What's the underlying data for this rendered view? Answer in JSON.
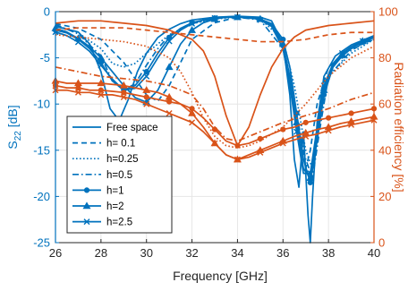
{
  "chart_data": {
    "type": "line",
    "xlabel": "Frequency [GHz]",
    "ylabel_left": "S",
    "ylabel_left_sub": "22",
    "ylabel_left_unit": " [dB]",
    "ylabel_right": "Radiation efficiency [%]",
    "xlim": [
      26,
      40
    ],
    "ylim_left": [
      -25,
      0
    ],
    "ylim_right": [
      0,
      100
    ],
    "xticks": [
      26,
      28,
      30,
      32,
      34,
      36,
      38,
      40
    ],
    "yticks_left": [
      0,
      -5,
      -10,
      -15,
      -20,
      -25
    ],
    "yticks_right": [
      100,
      80,
      60,
      40,
      20,
      0
    ],
    "grid": true,
    "legend_position": "bottom-left",
    "colors": {
      "left_axis": "#0072BD",
      "right_axis": "#D95319",
      "s22": "#0072BD",
      "efficiency": "#D95319"
    },
    "legend": [
      {
        "label": "Free space",
        "style": "solid",
        "marker": "none"
      },
      {
        "label": "h= 0.1",
        "style": "dashed",
        "marker": "none"
      },
      {
        "label": "h=0.25",
        "style": "dotted",
        "marker": "none"
      },
      {
        "label": "h=0.5",
        "style": "dashdot",
        "marker": "none"
      },
      {
        "label": "h=1",
        "style": "solid",
        "marker": "circle"
      },
      {
        "label": "h=2",
        "style": "solid",
        "marker": "triangle"
      },
      {
        "label": "h=2.5",
        "style": "solid",
        "marker": "x"
      }
    ],
    "s22_series": [
      {
        "style": "solid",
        "marker": "none",
        "x": [
          26,
          27,
          27.5,
          28,
          28.4,
          28.8,
          29.2,
          29.6,
          30,
          30.5,
          31,
          31.5,
          32,
          33,
          34,
          35,
          35.5,
          36,
          36.3,
          36.5,
          36.7,
          36.9,
          37.1,
          37.2,
          37.3,
          37.5,
          37.8,
          38.3,
          39,
          40
        ],
        "y": [
          -1.6,
          -2.2,
          -3.5,
          -6.5,
          -10.5,
          -11.8,
          -9.5,
          -6.5,
          -4.5,
          -2.8,
          -1.9,
          -1.3,
          -0.9,
          -0.6,
          -0.5,
          -0.6,
          -1.0,
          -3.5,
          -9,
          -16,
          -19,
          -13,
          -22,
          -25,
          -20,
          -12,
          -7,
          -4.8,
          -3.6,
          -2.6
        ]
      },
      {
        "style": "dashed",
        "marker": "none",
        "x": [
          26,
          27,
          28,
          29,
          30,
          30.5,
          31,
          31.5,
          32,
          33,
          34,
          35,
          35.5,
          36,
          36.4,
          36.8,
          37,
          37.2,
          37.5,
          38,
          39,
          40
        ],
        "y": [
          -1.3,
          -1.8,
          -3,
          -5.5,
          -9,
          -9.7,
          -8,
          -5.5,
          -3,
          -1.2,
          -0.6,
          -0.8,
          -1.5,
          -4,
          -9,
          -14,
          -17,
          -15,
          -10,
          -6,
          -4,
          -3
        ]
      },
      {
        "style": "dotted",
        "marker": "none",
        "x": [
          26,
          27,
          28,
          28.5,
          29,
          29.5,
          30,
          31,
          32,
          33,
          34,
          35,
          36,
          36.5,
          37,
          37.3,
          37.6,
          38,
          39,
          40
        ],
        "y": [
          -1.5,
          -2.3,
          -4,
          -5.6,
          -6.0,
          -5.6,
          -4.5,
          -2.5,
          -1.3,
          -0.8,
          -0.6,
          -0.8,
          -3,
          -8,
          -15,
          -17,
          -12,
          -7,
          -4.5,
          -3
        ]
      },
      {
        "style": "dashdot",
        "marker": "none",
        "x": [
          26,
          27,
          28,
          28.5,
          29,
          29.5,
          30,
          30.5,
          31,
          32,
          33,
          34,
          35,
          36,
          36.5,
          37,
          37.3,
          37.6,
          38,
          39,
          40
        ],
        "y": [
          -1.4,
          -2.4,
          -4.8,
          -7.5,
          -8.5,
          -7.8,
          -5.8,
          -4,
          -2.6,
          -1.3,
          -0.7,
          -0.6,
          -0.9,
          -4,
          -10,
          -16,
          -18,
          -13,
          -7,
          -4.2,
          -2.8
        ]
      },
      {
        "style": "solid",
        "marker": "circle",
        "x": [
          26,
          26.5,
          27,
          27.5,
          28,
          28.5,
          29,
          29.5,
          30,
          30.5,
          31,
          31.5,
          32,
          32.5,
          33,
          33.5,
          34,
          34.5,
          35,
          35.5,
          36,
          36.3,
          36.6,
          36.9,
          37.2,
          37.5,
          37.8,
          38.2,
          38.6,
          39,
          39.5,
          40
        ],
        "y": [
          -2,
          -2.3,
          -3,
          -4,
          -5.5,
          -7.5,
          -8.5,
          -8,
          -6.5,
          -4.5,
          -2.8,
          -1.8,
          -1.2,
          -0.9,
          -0.7,
          -0.6,
          -0.6,
          -0.6,
          -0.8,
          -1.3,
          -3,
          -6,
          -11,
          -16,
          -18.5,
          -14,
          -9,
          -6,
          -4.8,
          -4,
          -3.3,
          -2.8
        ]
      },
      {
        "style": "solid",
        "marker": "triangle",
        "x": [
          26,
          26.5,
          27,
          27.5,
          28,
          28.5,
          29,
          29.5,
          30,
          30.5,
          31,
          31.5,
          32,
          32.5,
          33,
          33.5,
          34,
          34.5,
          35,
          35.5,
          36,
          36.3,
          36.6,
          36.9,
          37.2,
          37.5,
          37.8,
          38.2,
          38.6,
          39,
          39.5,
          40
        ],
        "y": [
          -1.8,
          -2.2,
          -2.9,
          -3.8,
          -5,
          -6.5,
          -8,
          -9.3,
          -9.8,
          -8.5,
          -6,
          -3.5,
          -2,
          -1.2,
          -0.8,
          -0.6,
          -0.6,
          -0.6,
          -0.8,
          -1.5,
          -3.5,
          -7,
          -12,
          -17,
          -18,
          -13,
          -8.5,
          -5.8,
          -4.6,
          -3.8,
          -3.2,
          -2.7
        ]
      },
      {
        "style": "solid",
        "marker": "x",
        "x": [
          26,
          26.5,
          27,
          27.5,
          28,
          28.5,
          29,
          29.5,
          30,
          30.5,
          31,
          31.5,
          32,
          32.5,
          33,
          33.5,
          34,
          34.5,
          35,
          35.5,
          36,
          36.3,
          36.6,
          36.9,
          37.2,
          37.5,
          37.8,
          38.2,
          38.6,
          39,
          39.5,
          40
        ],
        "y": [
          -2.2,
          -2.6,
          -3.3,
          -4.3,
          -5.8,
          -7.3,
          -8.5,
          -8.3,
          -7,
          -5,
          -3.2,
          -2,
          -1.3,
          -0.9,
          -0.7,
          -0.6,
          -0.6,
          -0.6,
          -0.9,
          -1.6,
          -4,
          -8,
          -13,
          -17.5,
          -17.5,
          -12.5,
          -8,
          -5.6,
          -4.5,
          -3.8,
          -3.2,
          -2.7
        ]
      }
    ],
    "efficiency_series": [
      {
        "style": "solid",
        "marker": "none",
        "x": [
          26,
          27,
          28,
          29,
          30,
          31,
          32,
          32.5,
          33,
          33.5,
          34,
          34.5,
          35,
          35.5,
          36,
          36.5,
          37,
          38,
          39,
          40
        ],
        "y": [
          95,
          96,
          96,
          95,
          94,
          92,
          88,
          83,
          72,
          55,
          42,
          50,
          64,
          76,
          84,
          89,
          92,
          94,
          95,
          96
        ]
      },
      {
        "style": "dashed",
        "marker": "none",
        "x": [
          26,
          27,
          28,
          29,
          30,
          31,
          32,
          33,
          34,
          35,
          36,
          37,
          38,
          39,
          40
        ],
        "y": [
          92,
          93,
          93,
          93,
          92,
          91,
          90,
          89,
          88,
          87,
          87,
          88,
          90,
          91,
          91
        ]
      },
      {
        "style": "dotted",
        "marker": "none",
        "x": [
          26,
          27,
          28,
          29,
          30,
          31,
          31.5,
          32,
          32.5,
          33,
          33.5,
          34,
          34.5,
          35,
          36,
          37,
          38,
          39,
          40
        ],
        "y": [
          90,
          89,
          88,
          87,
          85,
          80,
          74,
          65,
          54,
          46,
          42,
          41,
          42,
          44,
          50,
          60,
          72,
          80,
          85
        ]
      },
      {
        "style": "dashdot",
        "marker": "none",
        "x": [
          26,
          27,
          28,
          29,
          30,
          31,
          32,
          32.5,
          33,
          33.5,
          34,
          34.5,
          35,
          36,
          37,
          38,
          39,
          40
        ],
        "y": [
          76,
          74,
          72,
          71,
          70,
          68,
          64,
          58,
          50,
          45,
          44,
          46,
          48,
          52,
          55,
          58,
          62,
          65
        ]
      },
      {
        "style": "solid",
        "marker": "circle",
        "x": [
          26,
          26.5,
          27,
          27.5,
          28,
          28.5,
          29,
          29.5,
          30,
          30.5,
          31,
          31.5,
          32,
          32.5,
          33,
          33.5,
          34,
          34.5,
          35,
          35.5,
          36,
          36.5,
          37,
          37.5,
          38,
          38.5,
          39,
          39.5,
          40
        ],
        "y": [
          68,
          67,
          67,
          66,
          66,
          65.5,
          65,
          64,
          63,
          62,
          61,
          60,
          58,
          54,
          49,
          44,
          42,
          43,
          45,
          47,
          49,
          50,
          52,
          53,
          54,
          55,
          56,
          57,
          58
        ]
      },
      {
        "style": "solid",
        "marker": "triangle",
        "x": [
          26,
          26.5,
          27,
          27.5,
          28,
          28.5,
          29,
          29.5,
          30,
          30.5,
          31,
          31.5,
          32,
          32.5,
          33,
          33.5,
          34,
          34.5,
          35,
          35.5,
          36,
          36.5,
          37,
          37.5,
          38,
          38.5,
          39,
          39.5,
          40
        ],
        "y": [
          70,
          69,
          69,
          69,
          69,
          68.5,
          68,
          67,
          66,
          65,
          63,
          60,
          56,
          50,
          43,
          38,
          36,
          38,
          40,
          42,
          44,
          46,
          47.5,
          49,
          50,
          51.5,
          52.5,
          53.5,
          54.5
        ]
      },
      {
        "style": "solid",
        "marker": "x",
        "x": [
          26,
          26.5,
          27,
          27.5,
          28,
          28.5,
          29,
          29.5,
          30,
          30.5,
          31,
          31.5,
          32,
          32.5,
          33,
          33.5,
          34,
          34.5,
          35,
          35.5,
          36,
          36.5,
          37,
          37.5,
          38,
          38.5,
          39,
          39.5,
          40
        ],
        "y": [
          66,
          66,
          65,
          65,
          64,
          64,
          63,
          62,
          60,
          58,
          56,
          54,
          52,
          48,
          43,
          38,
          36,
          37,
          39,
          41,
          43,
          44.5,
          46,
          47,
          48.5,
          50,
          51,
          52,
          53
        ]
      }
    ]
  }
}
